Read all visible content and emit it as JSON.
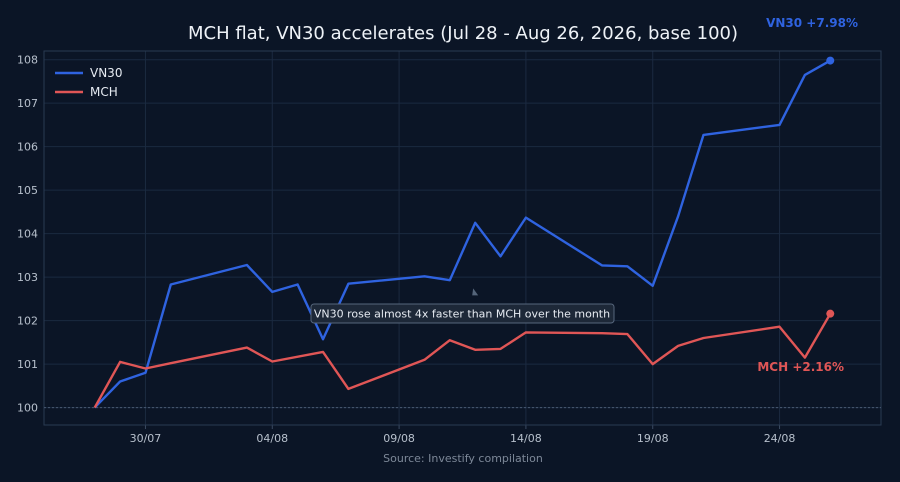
{
  "chart_data": {
    "type": "line",
    "title": "MCH flat, VN30 accelerates (Jul 28 - Aug 26, 2026, base 100)",
    "source": "Source: Investify compilation",
    "xlabel": "",
    "ylabel": "",
    "x_ticks": [
      "30/07",
      "04/08",
      "09/08",
      "14/08",
      "19/08",
      "24/08"
    ],
    "y_ticks": [
      "100",
      "101",
      "102",
      "103",
      "104",
      "105",
      "106",
      "107",
      "108"
    ],
    "ylim": [
      99.6,
      108.2
    ],
    "grid": true,
    "legend_position": "top-left",
    "baseline": 100,
    "series": [
      {
        "name": "VN30",
        "color": "#2f63e0",
        "end_label": "VN30 +7.98%",
        "points": [
          [
            "2026-07-28",
            100.0
          ],
          [
            "2026-07-29",
            100.6
          ],
          [
            "2026-07-30",
            100.8
          ],
          [
            "2026-07-31",
            102.83
          ],
          [
            "2026-08-03",
            103.28
          ],
          [
            "2026-08-04",
            102.66
          ],
          [
            "2026-08-05",
            102.83
          ],
          [
            "2026-08-06",
            101.57
          ],
          [
            "2026-08-07",
            102.85
          ],
          [
            "2026-08-10",
            103.02
          ],
          [
            "2026-08-11",
            102.93
          ],
          [
            "2026-08-12",
            104.25
          ],
          [
            "2026-08-13",
            103.48
          ],
          [
            "2026-08-14",
            104.37
          ],
          [
            "2026-08-17",
            103.27
          ],
          [
            "2026-08-18",
            103.25
          ],
          [
            "2026-08-19",
            102.8
          ],
          [
            "2026-08-20",
            104.4
          ],
          [
            "2026-08-21",
            106.27
          ],
          [
            "2026-08-24",
            106.5
          ],
          [
            "2026-08-25",
            107.65
          ],
          [
            "2026-08-26",
            107.98
          ]
        ]
      },
      {
        "name": "MCH",
        "color": "#e05656",
        "end_label": "MCH +2.16%",
        "points": [
          [
            "2026-07-28",
            100.0
          ],
          [
            "2026-07-29",
            101.05
          ],
          [
            "2026-07-30",
            100.9
          ],
          [
            "2026-07-31",
            101.02
          ],
          [
            "2026-08-03",
            101.38
          ],
          [
            "2026-08-04",
            101.06
          ],
          [
            "2026-08-06",
            101.28
          ],
          [
            "2026-08-07",
            100.43
          ],
          [
            "2026-08-10",
            101.1
          ],
          [
            "2026-08-11",
            101.55
          ],
          [
            "2026-08-12",
            101.33
          ],
          [
            "2026-08-13",
            101.35
          ],
          [
            "2026-08-14",
            101.73
          ],
          [
            "2026-08-17",
            101.71
          ],
          [
            "2026-08-18",
            101.69
          ],
          [
            "2026-08-19",
            101.0
          ],
          [
            "2026-08-20",
            101.42
          ],
          [
            "2026-08-21",
            101.6
          ],
          [
            "2026-08-24",
            101.86
          ],
          [
            "2026-08-25",
            101.15
          ],
          [
            "2026-08-26",
            102.16
          ]
        ]
      }
    ],
    "annotation": {
      "text": "VN30 rose almost 4x faster than MCH over the month",
      "anchor_date": "2026-08-12",
      "anchor_value": 102.65
    }
  }
}
